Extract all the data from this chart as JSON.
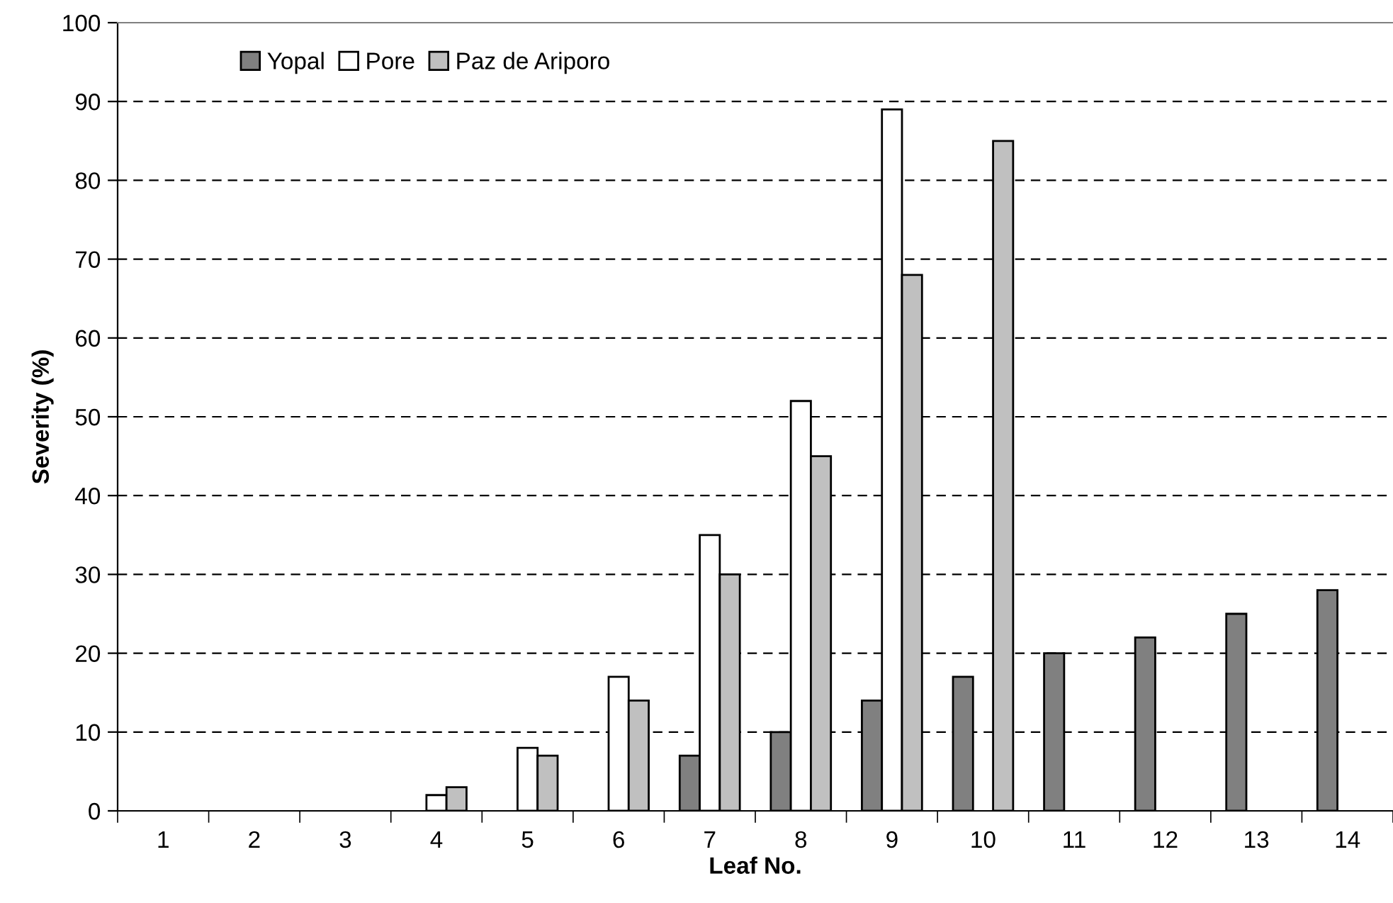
{
  "chart_data": {
    "type": "bar",
    "xlabel": "Leaf No.",
    "ylabel": "Severity (%)",
    "categories": [
      "1",
      "2",
      "3",
      "4",
      "5",
      "6",
      "7",
      "8",
      "9",
      "10",
      "11",
      "12",
      "13",
      "14"
    ],
    "series": [
      {
        "name": "Yopal",
        "color": "#808080",
        "values": [
          null,
          null,
          null,
          null,
          null,
          null,
          7,
          10,
          14,
          17,
          20,
          22,
          25,
          28
        ]
      },
      {
        "name": "Pore",
        "color": "#ffffff",
        "values": [
          null,
          null,
          null,
          2,
          8,
          17,
          35,
          52,
          89,
          null,
          null,
          null,
          null,
          null
        ]
      },
      {
        "name": "Paz de Ariporo",
        "color": "#c0c0c0",
        "values": [
          null,
          null,
          null,
          3,
          7,
          14,
          30,
          45,
          68,
          85,
          null,
          null,
          null,
          null
        ]
      }
    ],
    "ylim": [
      0,
      100
    ],
    "yticks": [
      0,
      10,
      20,
      30,
      40,
      50,
      60,
      70,
      80,
      90,
      100
    ],
    "grid": "y",
    "legend": "top left"
  }
}
